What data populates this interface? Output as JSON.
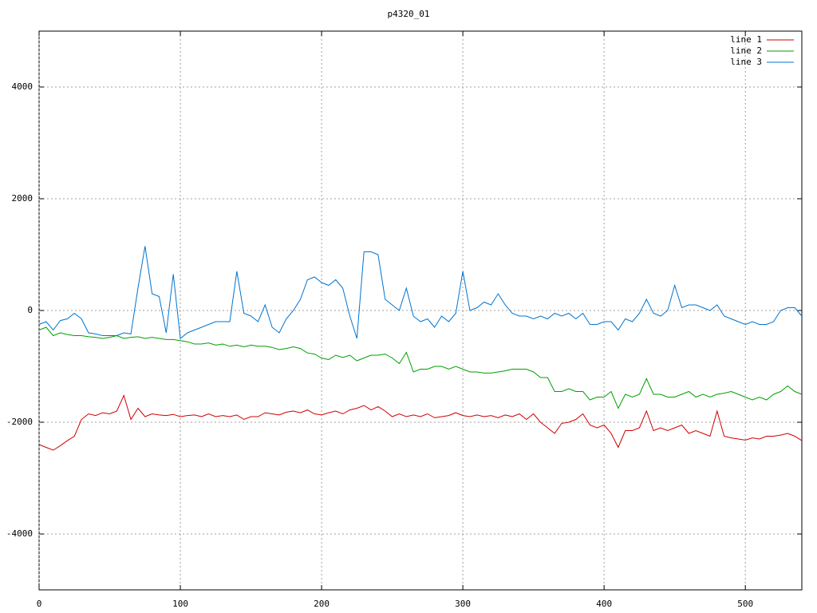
{
  "chart_data": {
    "type": "line",
    "title": "p4320_01",
    "x": [
      0,
      5,
      10,
      15,
      20,
      25,
      30,
      35,
      40,
      45,
      50,
      55,
      60,
      65,
      70,
      75,
      80,
      85,
      90,
      95,
      100,
      105,
      110,
      115,
      120,
      125,
      130,
      135,
      140,
      145,
      150,
      155,
      160,
      165,
      170,
      175,
      180,
      185,
      190,
      195,
      200,
      205,
      210,
      215,
      220,
      225,
      230,
      235,
      240,
      245,
      250,
      255,
      260,
      265,
      270,
      275,
      280,
      285,
      290,
      295,
      300,
      305,
      310,
      315,
      320,
      325,
      330,
      335,
      340,
      345,
      350,
      355,
      360,
      365,
      370,
      375,
      380,
      385,
      390,
      395,
      400,
      405,
      410,
      415,
      420,
      425,
      430,
      435,
      440,
      445,
      450,
      455,
      460,
      465,
      470,
      475,
      480,
      485,
      490,
      495,
      500,
      505,
      510,
      515,
      520,
      525,
      530,
      535,
      540
    ],
    "series": [
      {
        "name": "line 1",
        "color": "#d00000",
        "values": [
          -2400,
          -2450,
          -2500,
          -2420,
          -2330,
          -2250,
          -1950,
          -1850,
          -1880,
          -1830,
          -1850,
          -1800,
          -1520,
          -1950,
          -1750,
          -1900,
          -1850,
          -1870,
          -1880,
          -1860,
          -1900,
          -1880,
          -1870,
          -1900,
          -1850,
          -1900,
          -1880,
          -1900,
          -1870,
          -1950,
          -1900,
          -1900,
          -1830,
          -1850,
          -1870,
          -1820,
          -1800,
          -1830,
          -1780,
          -1850,
          -1870,
          -1830,
          -1800,
          -1850,
          -1780,
          -1750,
          -1700,
          -1780,
          -1720,
          -1800,
          -1900,
          -1850,
          -1900,
          -1870,
          -1900,
          -1850,
          -1920,
          -1900,
          -1880,
          -1830,
          -1880,
          -1900,
          -1870,
          -1900,
          -1880,
          -1920,
          -1870,
          -1900,
          -1850,
          -1950,
          -1850,
          -2000,
          -2100,
          -2200,
          -2020,
          -2000,
          -1950,
          -1850,
          -2050,
          -2100,
          -2050,
          -2200,
          -2450,
          -2150,
          -2150,
          -2100,
          -1800,
          -2150,
          -2100,
          -2150,
          -2100,
          -2050,
          -2200,
          -2150,
          -2200,
          -2250,
          -1800,
          -2250,
          -2280,
          -2300,
          -2320,
          -2280,
          -2300,
          -2250,
          -2250,
          -2230,
          -2200,
          -2250,
          -2330
        ]
      },
      {
        "name": "line 2",
        "color": "#00a000",
        "values": [
          -350,
          -300,
          -450,
          -400,
          -430,
          -450,
          -450,
          -470,
          -480,
          -500,
          -480,
          -450,
          -500,
          -480,
          -470,
          -500,
          -480,
          -500,
          -520,
          -520,
          -540,
          -560,
          -600,
          -600,
          -580,
          -620,
          -600,
          -640,
          -620,
          -650,
          -620,
          -640,
          -640,
          -660,
          -700,
          -680,
          -650,
          -680,
          -760,
          -780,
          -850,
          -880,
          -800,
          -840,
          -800,
          -900,
          -850,
          -800,
          -800,
          -780,
          -850,
          -950,
          -750,
          -1100,
          -1050,
          -1050,
          -1000,
          -1000,
          -1050,
          -1000,
          -1050,
          -1100,
          -1100,
          -1120,
          -1120,
          -1100,
          -1080,
          -1050,
          -1050,
          -1050,
          -1100,
          -1200,
          -1200,
          -1450,
          -1450,
          -1400,
          -1450,
          -1450,
          -1600,
          -1550,
          -1550,
          -1450,
          -1750,
          -1500,
          -1550,
          -1500,
          -1220,
          -1500,
          -1500,
          -1550,
          -1550,
          -1500,
          -1450,
          -1550,
          -1500,
          -1550,
          -1500,
          -1480,
          -1450,
          -1500,
          -1550,
          -1600,
          -1550,
          -1600,
          -1500,
          -1450,
          -1350,
          -1450,
          -1500
        ]
      },
      {
        "name": "line 3",
        "color": "#0074d0",
        "values": [
          -250,
          -200,
          -350,
          -180,
          -150,
          -50,
          -150,
          -400,
          -420,
          -450,
          -450,
          -450,
          -400,
          -420,
          400,
          1150,
          300,
          250,
          -400,
          650,
          -500,
          -400,
          -350,
          -300,
          -250,
          -200,
          -200,
          -200,
          700,
          -50,
          -100,
          -200,
          100,
          -300,
          -400,
          -150,
          0,
          200,
          550,
          600,
          500,
          450,
          550,
          400,
          -100,
          -500,
          1050,
          1050,
          1000,
          200,
          100,
          0,
          400,
          -100,
          -200,
          -150,
          -300,
          -100,
          -200,
          -50,
          700,
          0,
          50,
          150,
          100,
          300,
          100,
          -50,
          -100,
          -100,
          -150,
          -100,
          -150,
          -50,
          -100,
          -50,
          -150,
          -50,
          -250,
          -250,
          -200,
          -200,
          -350,
          -150,
          -200,
          -50,
          200,
          -50,
          -100,
          0,
          450,
          50,
          100,
          100,
          50,
          0,
          100,
          -100,
          -150,
          -200,
          -250,
          -200,
          -250,
          -250,
          -200,
          0,
          50,
          50,
          -100
        ]
      }
    ],
    "xlim": [
      0,
      540
    ],
    "xticks": [
      0,
      100,
      200,
      300,
      400,
      500
    ],
    "ylim": [
      -5000,
      5000
    ],
    "yticks": [
      -4000,
      -2000,
      0,
      2000,
      4000
    ],
    "grid": true,
    "legend": "top-right"
  }
}
